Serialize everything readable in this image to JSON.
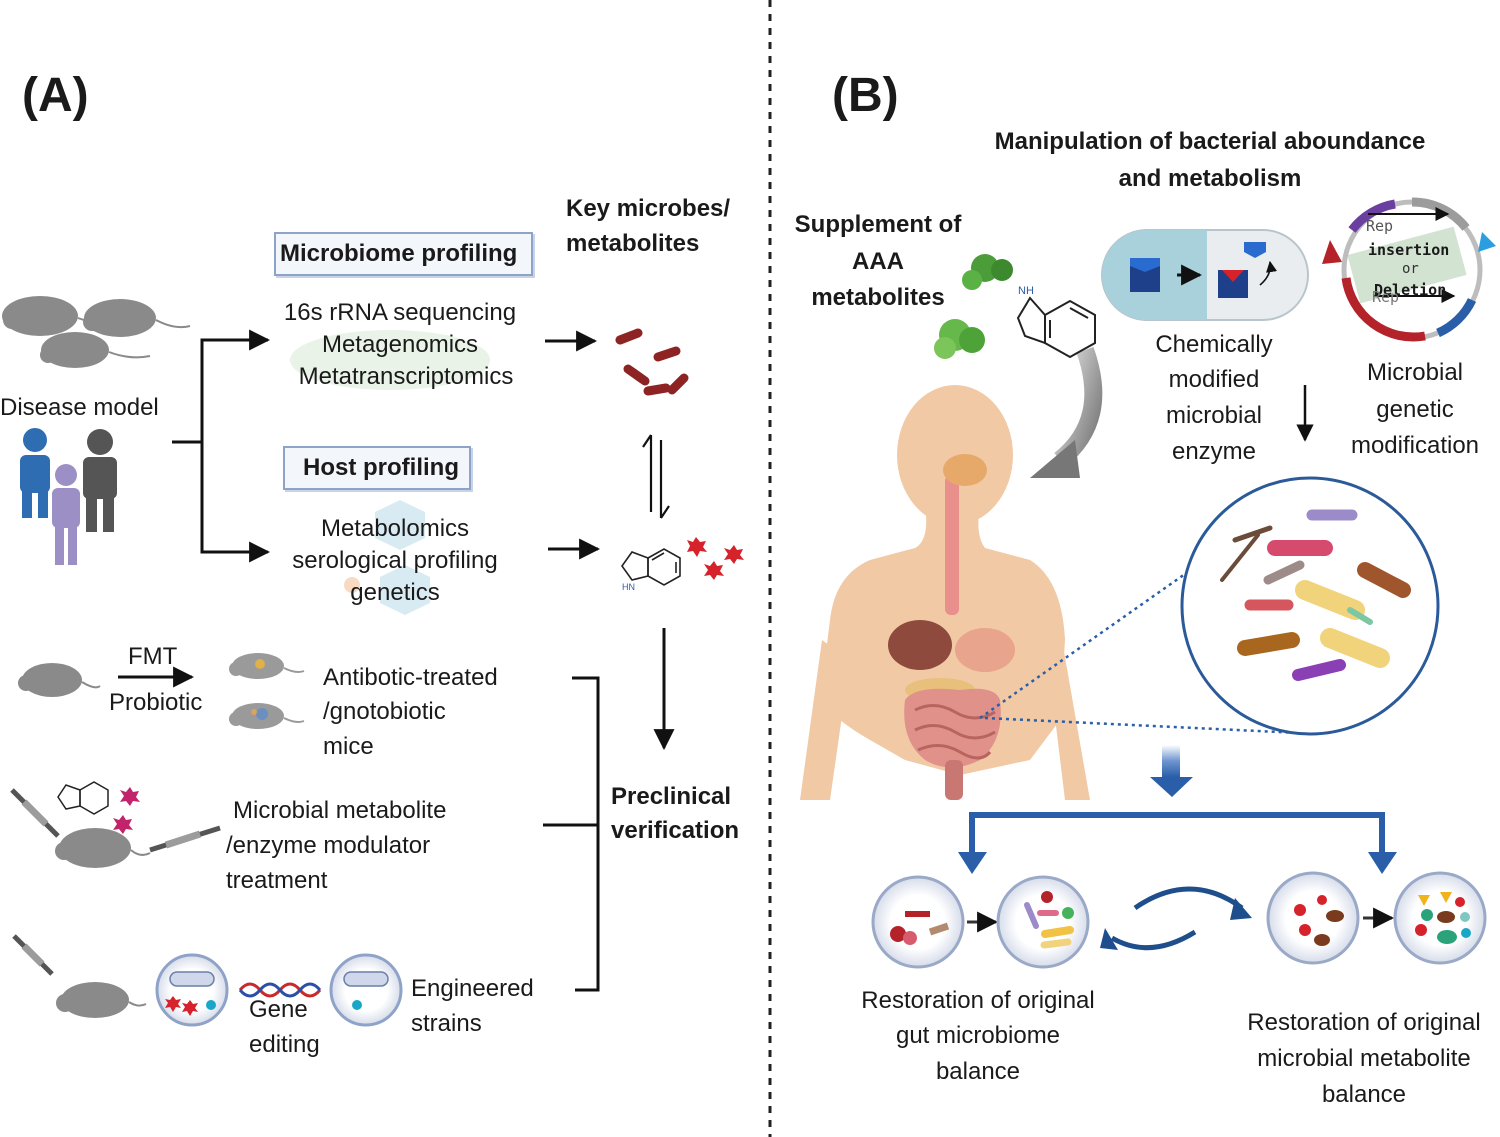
{
  "panel_a": {
    "letter": "(A)",
    "disease_model": "Disease model",
    "microbiome_box": "Microbiome profiling",
    "microbiome_methods": [
      "16s rRNA sequencing",
      "Metagenomics",
      "Metatranscriptomics"
    ],
    "host_box": "Host profiling",
    "host_methods": [
      "Metabolomics",
      "serological profiling",
      "genetics"
    ],
    "key_title": [
      "Key microbes/",
      "metabolites"
    ],
    "fmt": "FMT",
    "probiotic": "Probiotic",
    "mice_label": [
      "Antibotic-treated",
      "/gnotobiotic",
      "mice"
    ],
    "modulator_label": [
      "Microbial metabolite",
      "/enzyme modulator",
      "treatment"
    ],
    "gene_editing": [
      "Gene",
      "editing"
    ],
    "engineered": [
      "Engineered",
      "strains"
    ],
    "preclinical": [
      "Preclinical",
      "verification"
    ]
  },
  "panel_b": {
    "letter": "(B)",
    "manipulation_title": [
      "Manipulation of bacterial aboundance",
      "and metabolism"
    ],
    "supplement": [
      "Supplement of",
      "AAA",
      "metabolites"
    ],
    "enzyme_label": [
      "Chemically",
      "modified",
      "microbial",
      "enzyme"
    ],
    "genetic_label": [
      "Microbial",
      "genetic",
      "modification"
    ],
    "plasmid_text": [
      "Rep",
      "insertion",
      "or",
      "Deletion",
      "Rep"
    ],
    "restoration_microbiome": [
      "Restoration of original",
      "gut microbiome",
      "balance"
    ],
    "restoration_metabolite": [
      "Restoration of original",
      "microbial metabolite",
      "balance"
    ]
  },
  "colors": {
    "arrow_blue": "#2a5ea8",
    "circle_border": "#2b5a9a",
    "box_border": "#8ea3c8",
    "mouse_gray": "#8a8a8a",
    "bacteria_red": "#9c2a2a",
    "star_red": "#d6222a",
    "body_skin": "#f1c9a5"
  }
}
